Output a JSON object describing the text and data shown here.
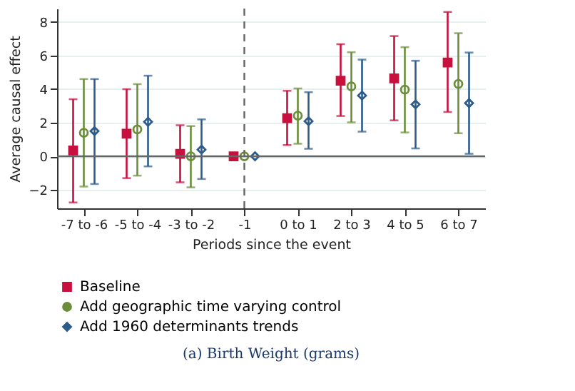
{
  "chart_data": {
    "type": "scatter",
    "xlabel": "Periods since the event",
    "ylabel": "Average causal effect",
    "categories": [
      "-7 to -6",
      "-5 to -4",
      "-3 to -2",
      "-1",
      "0 to 1",
      "2 to 3",
      "4 to 5",
      "6 to 7"
    ],
    "series": [
      {
        "name": "Baseline",
        "color": "#c8103e",
        "marker": "square",
        "values": [
          0.35,
          1.35,
          0.15,
          0,
          2.27,
          4.5,
          4.64,
          5.59
        ],
        "errors": [
          [
            -2.75,
            3.4
          ],
          [
            -1.3,
            4.0
          ],
          [
            -1.55,
            1.85
          ],
          null,
          [
            0.67,
            3.9
          ],
          [
            2.4,
            6.68
          ],
          [
            2.14,
            7.16
          ],
          [
            2.64,
            8.6
          ]
        ]
      },
      {
        "name": "Add geographic time varying control",
        "color": "#6b8e3a",
        "marker": "circle",
        "values": [
          1.4,
          1.6,
          0,
          0,
          2.42,
          4.16,
          3.97,
          4.31
        ],
        "errors": [
          [
            -1.8,
            4.6
          ],
          [
            -1.15,
            4.3
          ],
          [
            -1.85,
            1.8
          ],
          null,
          [
            0.75,
            4.04
          ],
          [
            2.02,
            6.2
          ],
          [
            1.42,
            6.5
          ],
          [
            1.37,
            7.33
          ]
        ]
      },
      {
        "name": "Add 1960 determinants trends",
        "color": "#2e5c8a",
        "marker": "diamond",
        "values": [
          1.5,
          2.05,
          0.4,
          0,
          2.09,
          3.62,
          3.09,
          3.17
        ],
        "errors": [
          [
            -1.65,
            4.6
          ],
          [
            -0.6,
            4.8
          ],
          [
            -1.35,
            2.2
          ],
          null,
          [
            0.45,
            3.82
          ],
          [
            1.47,
            5.76
          ],
          [
            0.47,
            5.69
          ],
          [
            0.15,
            6.18
          ]
        ]
      }
    ],
    "ylim": [
      -3.1,
      8.8
    ],
    "yticks": [
      -2,
      0,
      2,
      4,
      6,
      8
    ],
    "grid": "y",
    "legend": "bottom",
    "ref_lines": [
      {
        "axis": "y",
        "value": 0,
        "color": "#666666",
        "line_style": "solid"
      },
      {
        "axis": "x",
        "value": "-1",
        "color": "#666666",
        "line_style": "dashed"
      }
    ],
    "annotations": [
      "(a) Birth Weight (grams)"
    ]
  }
}
